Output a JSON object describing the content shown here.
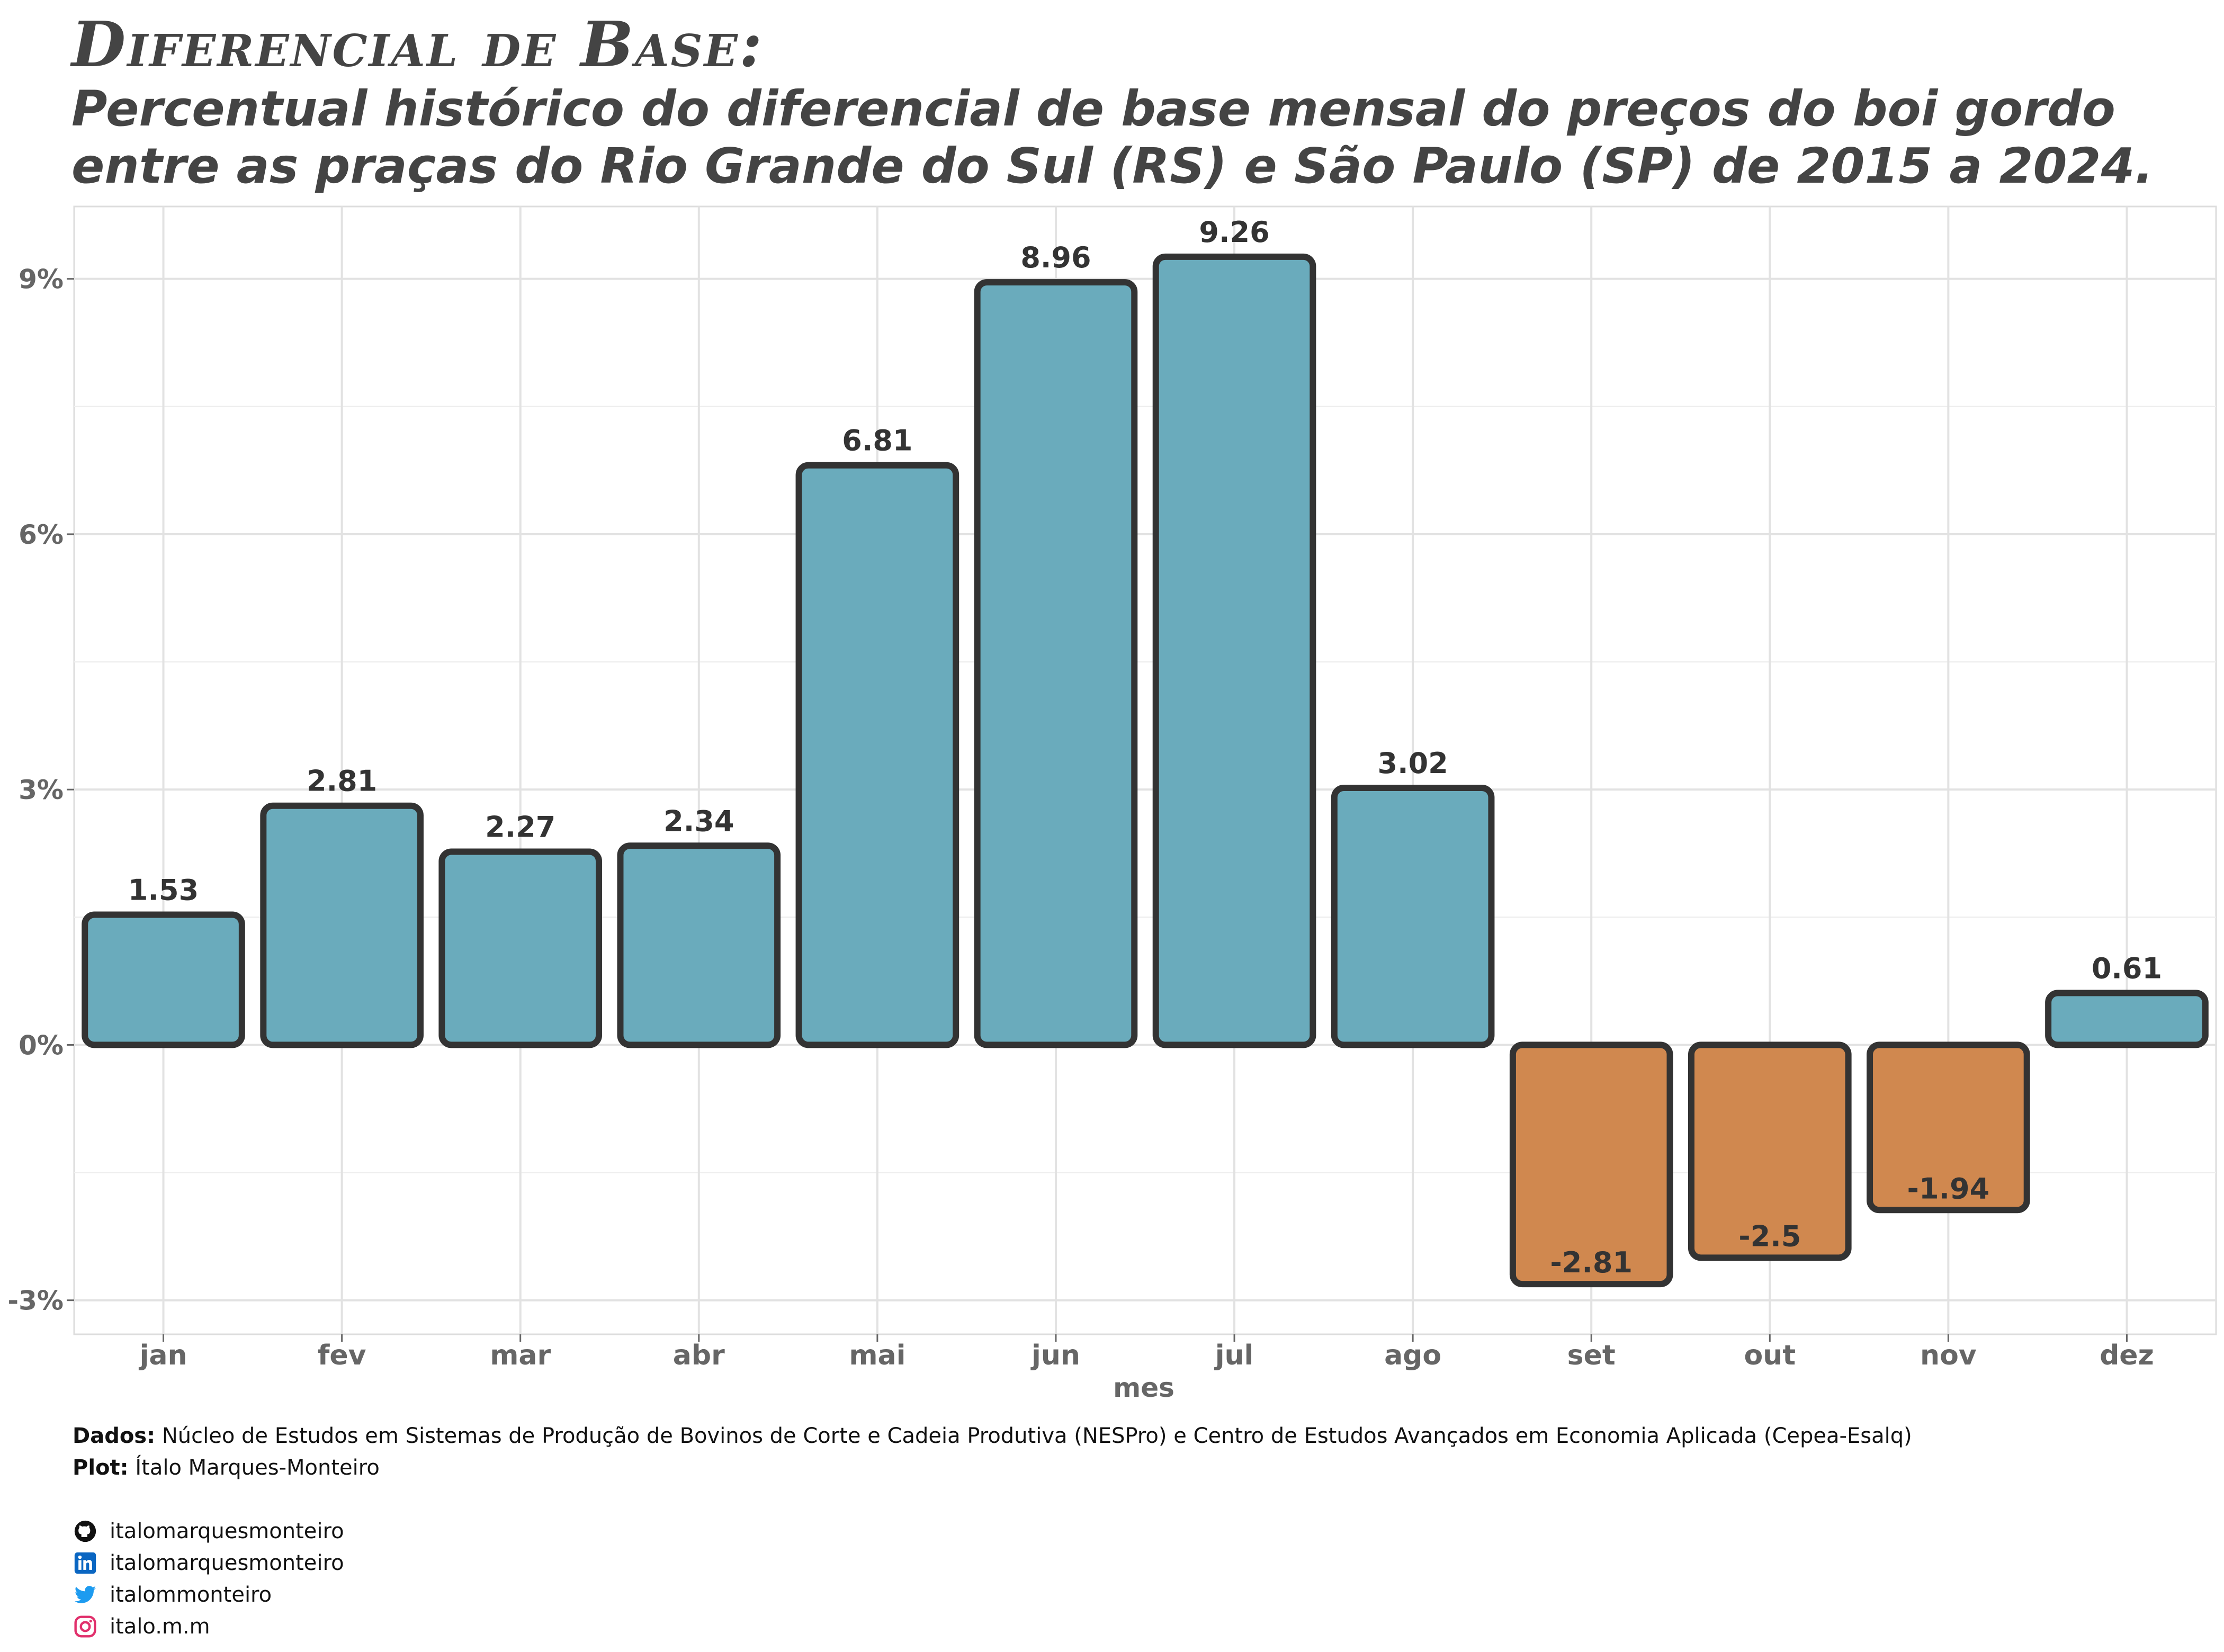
{
  "title": "Diferencial de Base:",
  "subtitle_lines": [
    "Percentual histórico do diferencial de base mensal do preços do boi gordo",
    "entre as praças do Rio Grande do Sul (RS) e São Paulo (SP) de 2015 a 2024."
  ],
  "chart_data": {
    "type": "bar",
    "title": "Diferencial de Base:",
    "xlabel": "mes",
    "ylabel": "",
    "categories": [
      "jan",
      "fev",
      "mar",
      "abr",
      "mai",
      "jun",
      "jul",
      "ago",
      "set",
      "out",
      "nov",
      "dez"
    ],
    "values": [
      1.53,
      2.81,
      2.27,
      2.34,
      6.81,
      8.96,
      9.26,
      3.02,
      -2.81,
      -2.5,
      -1.94,
      0.61
    ],
    "data_labels": [
      "1.53",
      "2.81",
      "2.27",
      "2.34",
      "6.81",
      "8.96",
      "9.26",
      "3.02",
      "-2.81",
      "-2.5",
      "-1.94",
      "0.61"
    ],
    "ylim": [
      -3.4,
      9.85
    ],
    "y_ticks": [
      -3,
      0,
      3,
      6,
      9
    ],
    "y_tick_labels": [
      "-3%",
      "0%",
      "3%",
      "6%",
      "9%"
    ],
    "grid": true,
    "legend": "none",
    "colors": {
      "positive": "#6aabbc",
      "negative": "#d0884f",
      "outline": "#333333"
    }
  },
  "caption": {
    "data_label": "Dados:",
    "data_text": "Núcleo de Estudos em Sistemas de Produção de Bovinos de Corte e Cadeia Produtiva (NESPro) e Centro de Estudos Avançados em Economia Aplicada (Cepea-Esalq)",
    "plot_label": "Plot:",
    "plot_text": "Ítalo Marques-Monteiro"
  },
  "social": [
    {
      "icon": "github-icon",
      "text": "italomarquesmonteiro",
      "color": "#111111"
    },
    {
      "icon": "linkedin-icon",
      "text": "italomarquesmonteiro",
      "color": "#0a66c2"
    },
    {
      "icon": "twitter-icon",
      "text": "italommonteiro",
      "color": "#1d9bf0"
    },
    {
      "icon": "instagram-icon",
      "text": "italo.m.m",
      "color": "#e1306c"
    }
  ]
}
